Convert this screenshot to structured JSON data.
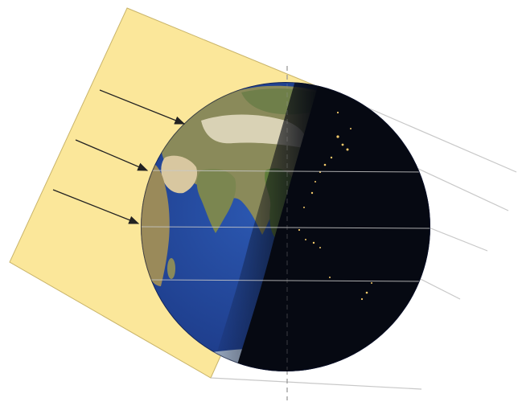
{
  "figure": {
    "subject": "earth-illumination",
    "colors": {
      "background": "#ffffff",
      "sunlight": "#fbe79a",
      "sunlight_edge": "#c9b46a",
      "ocean": "#1f3f8e",
      "ocean_deep": "#16306f",
      "land": "#8a8a5a",
      "land_light": "#d9d2b5",
      "land_green": "#5f7d3a",
      "night_side": "#060912",
      "city_lights": "#f2c96a",
      "ray_arrow": "#222222",
      "latitude_line": "#c8c8c8",
      "axis_line": "#9a9a9a"
    },
    "icons": {
      "sun_ray": "arrow-right-down",
      "globe": "earth-globe"
    }
  }
}
